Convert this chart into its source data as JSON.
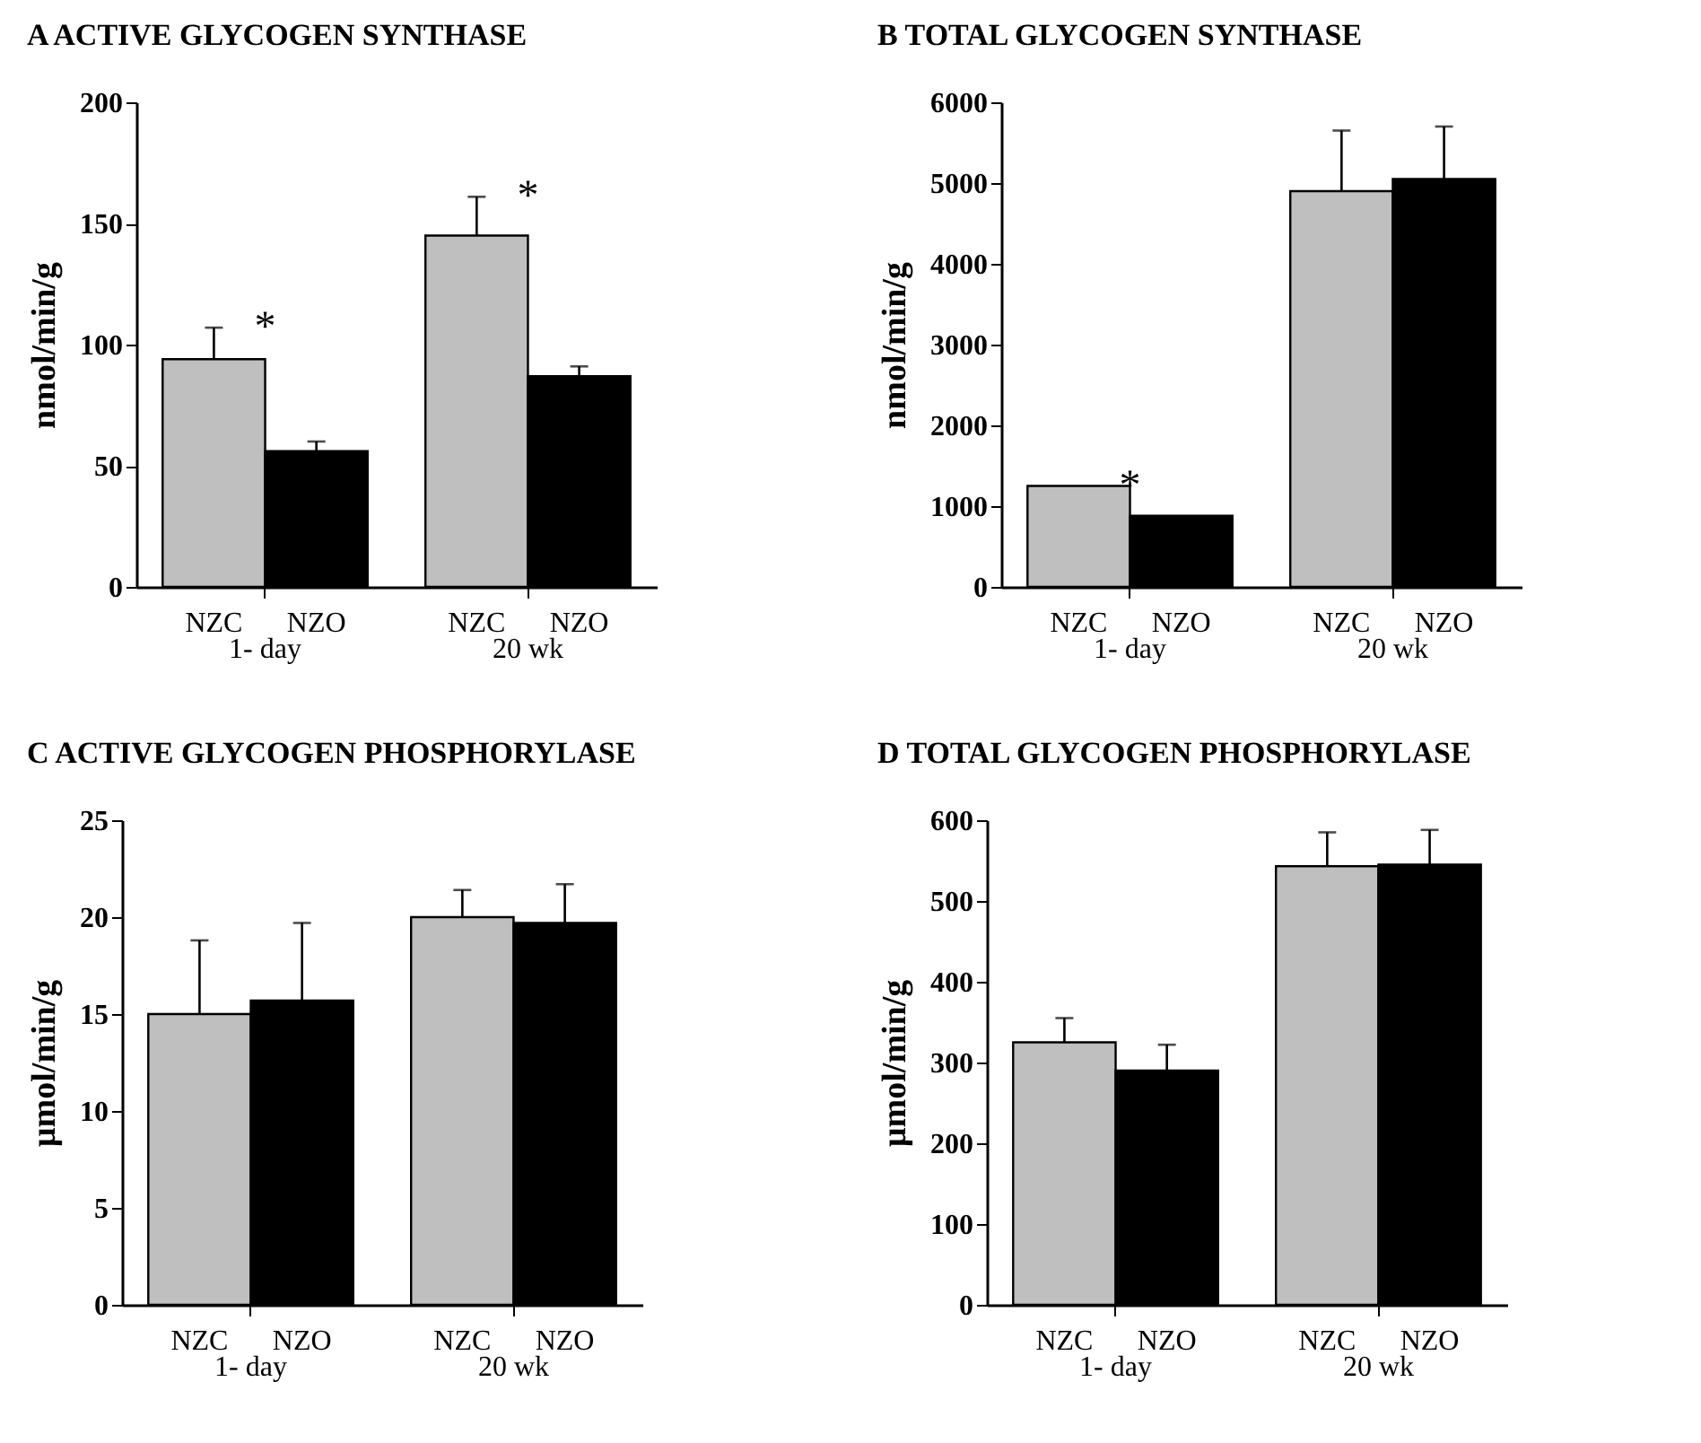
{
  "chart_data": [
    {
      "type": "bar",
      "title": "A ACTIVE GLYCOGEN SYNTHASE",
      "ylabel": "nmol/min/g",
      "categories": [
        "1- day",
        "20 wk"
      ],
      "ylim": [
        0,
        200
      ],
      "yticks": [
        0,
        50,
        100,
        150,
        200
      ],
      "annotations": [
        "*",
        "*"
      ],
      "series": [
        {
          "name": "NZC",
          "color": "#bfbfbf",
          "values": [
            94,
            145
          ],
          "errors": [
            [
              94,
              107
            ],
            [
              145,
              161
            ]
          ]
        },
        {
          "name": "NZO",
          "color": "#000000",
          "values": [
            56,
            87
          ],
          "errors": [
            [
              56,
              60
            ],
            [
              87,
              91
            ]
          ]
        }
      ]
    },
    {
      "type": "bar",
      "title": "B TOTAL GLYCOGEN SYNTHASE",
      "ylabel": "nmol/min/g",
      "categories": [
        "1- day",
        "20 wk"
      ],
      "ylim": [
        0,
        6000
      ],
      "yticks": [
        0,
        1000,
        2000,
        3000,
        4000,
        5000,
        6000
      ],
      "annotations": [
        "*"
      ],
      "series": [
        {
          "name": "NZC",
          "color": "#bfbfbf",
          "values": [
            1250,
            4900
          ],
          "errors": [
            null,
            [
              4900,
              5650
            ]
          ]
        },
        {
          "name": "NZO",
          "color": "#000000",
          "values": [
            880,
            5050
          ],
          "errors": [
            null,
            [
              5050,
              5700
            ]
          ]
        }
      ]
    },
    {
      "type": "bar",
      "title": "C ACTIVE GLYCOGEN PHOSPHORYLASE",
      "ylabel": "µmol/min/g",
      "categories": [
        "1- day",
        "20 wk"
      ],
      "ylim": [
        0,
        25
      ],
      "yticks": [
        0,
        5,
        10,
        15,
        20,
        25
      ],
      "series": [
        {
          "name": "NZC",
          "color": "#bfbfbf",
          "values": [
            15,
            20
          ],
          "errors": [
            [
              15,
              18.8
            ],
            [
              20,
              21.4
            ]
          ]
        },
        {
          "name": "NZO",
          "color": "#000000",
          "values": [
            15.7,
            19.7
          ],
          "errors": [
            [
              15.7,
              19.7
            ],
            [
              19.7,
              21.7
            ]
          ]
        }
      ]
    },
    {
      "type": "bar",
      "title": "D TOTAL GLYCOGEN PHOSPHORYLASE",
      "ylabel": "µmol/min/g",
      "categories": [
        "1- day",
        "20 wk"
      ],
      "ylim": [
        0,
        600
      ],
      "yticks": [
        0,
        100,
        200,
        300,
        400,
        500,
        600
      ],
      "series": [
        {
          "name": "NZC",
          "color": "#bfbfbf",
          "values": [
            325,
            543
          ],
          "errors": [
            [
              325,
              355
            ],
            [
              543,
              585
            ]
          ]
        },
        {
          "name": "NZO",
          "color": "#000000",
          "values": [
            290,
            545
          ],
          "errors": [
            [
              290,
              322
            ],
            [
              545,
              588
            ]
          ]
        }
      ]
    }
  ]
}
